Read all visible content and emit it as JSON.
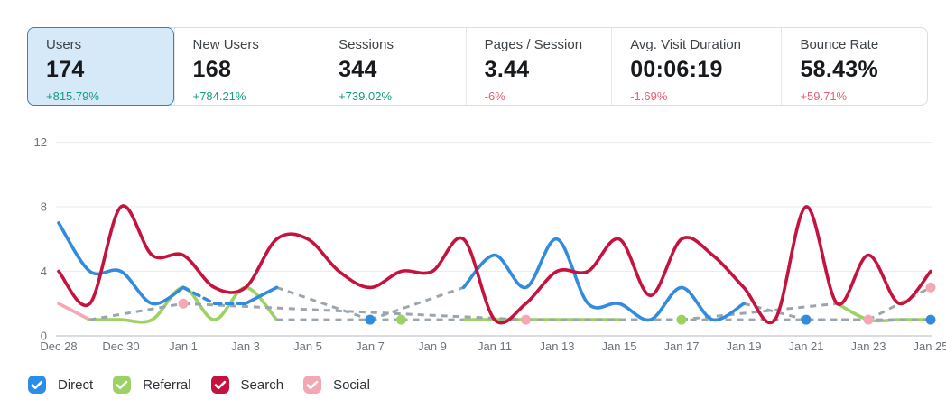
{
  "metrics": {
    "cards": [
      {
        "label": "Users",
        "value": "174",
        "change": "+815.79%",
        "change_positive": true,
        "selected": true
      },
      {
        "label": "New Users",
        "value": "168",
        "change": "+784.21%",
        "change_positive": true,
        "selected": false
      },
      {
        "label": "Sessions",
        "value": "344",
        "change": "+739.02%",
        "change_positive": true,
        "selected": false
      },
      {
        "label": "Pages / Session",
        "value": "3.44",
        "change": "-6%",
        "change_positive": false,
        "selected": false
      },
      {
        "label": "Avg. Visit Duration",
        "value": "00:06:19",
        "change": "-1.69%",
        "change_positive": false,
        "selected": false
      },
      {
        "label": "Bounce Rate",
        "value": "58.43%",
        "change": "+59.71%",
        "change_positive": false,
        "selected": false
      }
    ]
  },
  "chart_data": {
    "type": "line",
    "x_days": [
      "Dec 28",
      "Dec 29",
      "Dec 30",
      "Dec 31",
      "Jan 1",
      "Jan 2",
      "Jan 3",
      "Jan 4",
      "Jan 5",
      "Jan 6",
      "Jan 7",
      "Jan 8",
      "Jan 9",
      "Jan 10",
      "Jan 11",
      "Jan 12",
      "Jan 13",
      "Jan 14",
      "Jan 15",
      "Jan 16",
      "Jan 17",
      "Jan 18",
      "Jan 19",
      "Jan 20",
      "Jan 21",
      "Jan 22",
      "Jan 23",
      "Jan 24",
      "Jan 25"
    ],
    "x_tick_labels": [
      "Dec 28",
      "Dec 30",
      "Jan 1",
      "Jan 3",
      "Jan 5",
      "Jan 7",
      "Jan 9",
      "Jan 11",
      "Jan 13",
      "Jan 15",
      "Jan 17",
      "Jan 19",
      "Jan 21",
      "Jan 23",
      "Jan 25"
    ],
    "ylim": [
      0,
      12
    ],
    "yticks": [
      0,
      4,
      8,
      12
    ],
    "grid": "horizontal-only",
    "series": [
      {
        "name": "Direct",
        "color": "#338BDE",
        "values": [
          7,
          4,
          4,
          2,
          3,
          2,
          2,
          3,
          null,
          null,
          1,
          null,
          null,
          3,
          5,
          3,
          6,
          2,
          2,
          1,
          3,
          1,
          2,
          null,
          1,
          null,
          null,
          null,
          1
        ],
        "dashed_ranges": [
          [
            4,
            6
          ]
        ]
      },
      {
        "name": "Referral",
        "color": "#9CD264",
        "values": [
          null,
          1,
          1,
          1,
          3,
          1,
          3,
          1,
          null,
          null,
          null,
          1,
          null,
          1,
          1,
          1,
          1,
          1,
          1,
          null,
          1,
          null,
          null,
          null,
          null,
          2,
          1,
          1,
          1
        ]
      },
      {
        "name": "Search",
        "color": "#C4133F",
        "values": [
          4,
          2,
          8,
          5,
          5,
          3,
          3,
          6,
          6,
          4,
          3,
          4,
          4,
          6,
          1,
          2,
          4,
          4,
          6,
          2.5,
          6,
          5,
          3,
          1,
          8,
          2,
          5,
          2,
          4
        ]
      },
      {
        "name": "Social",
        "color": "#F3A8B4",
        "values": [
          2,
          1,
          null,
          null,
          2,
          null,
          null,
          null,
          null,
          null,
          null,
          null,
          null,
          null,
          null,
          1,
          null,
          null,
          null,
          null,
          null,
          null,
          null,
          null,
          null,
          null,
          1,
          null,
          3
        ]
      }
    ],
    "draw_order": [
      3,
      1,
      0,
      2
    ],
    "gap_line": {
      "color": "#9AA5AE",
      "dasharray": "7 6"
    },
    "colors": {
      "grid": "#EAECEE",
      "axis_zero": "#B3BAC0",
      "tick_text": "#6C737A"
    },
    "legend": [
      {
        "label": "Direct",
        "color": "#2B8CEA",
        "checked": true
      },
      {
        "label": "Referral",
        "color": "#9CD264",
        "checked": true
      },
      {
        "label": "Search",
        "color": "#C4133F",
        "checked": true
      },
      {
        "label": "Social",
        "color": "#F3A8B4",
        "checked": true
      }
    ],
    "legend_position": "bottom-left"
  }
}
